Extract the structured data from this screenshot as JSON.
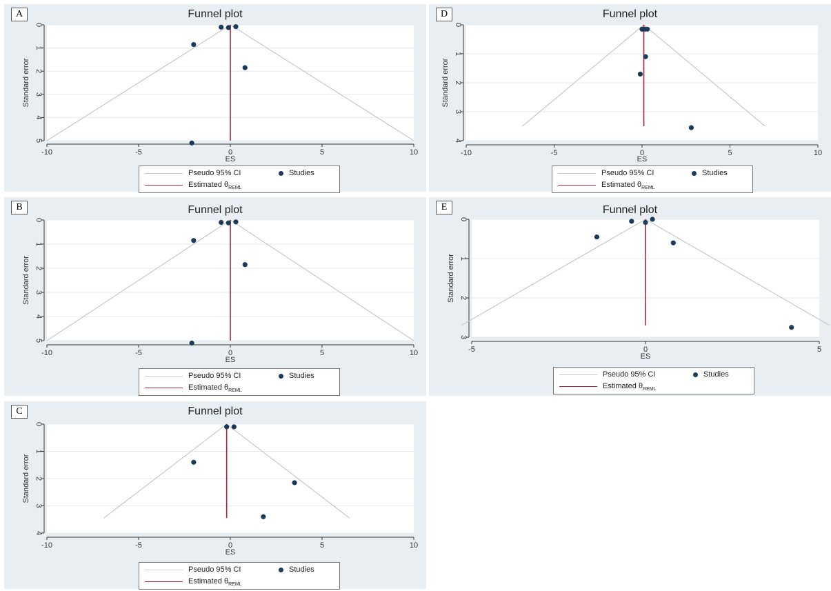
{
  "chart_data": [
    {
      "panel_label": "A",
      "type": "scatter",
      "title": "Funnel plot",
      "xlabel": "ES",
      "ylabel": "Standard error",
      "xlim": [
        -10,
        10
      ],
      "ylim": [
        0,
        5
      ],
      "y_reversed": true,
      "x_ticks": [
        "-10",
        "-5",
        "0",
        "5",
        "10"
      ],
      "y_ticks": [
        "0",
        "1",
        "2",
        "3",
        "4",
        "5"
      ],
      "estimate": 0.0,
      "ci_lines": [
        [
          0,
          0
        ],
        [
          -10,
          5
        ],
        [
          10,
          5
        ]
      ],
      "points": [
        [
          -0.5,
          0.1
        ],
        [
          -0.1,
          0.12
        ],
        [
          0.3,
          0.08
        ],
        [
          -2.0,
          0.85
        ],
        [
          0.8,
          1.85
        ],
        [
          -2.1,
          5.1
        ]
      ],
      "legend": {
        "ci": "Pseudo 95% CI",
        "studies": "Studies",
        "est": "Estimated θ",
        "est_sub": "REML"
      }
    },
    {
      "panel_label": "B",
      "type": "scatter",
      "title": "Funnel plot",
      "xlabel": "ES",
      "ylabel": "Standard error",
      "xlim": [
        -10,
        10
      ],
      "ylim": [
        0,
        5
      ],
      "y_reversed": true,
      "x_ticks": [
        "-10",
        "-5",
        "0",
        "5",
        "10"
      ],
      "y_ticks": [
        "0",
        "1",
        "2",
        "3",
        "4",
        "5"
      ],
      "estimate": 0.0,
      "ci_lines": [
        [
          0,
          0
        ],
        [
          -10,
          5
        ],
        [
          10,
          5
        ]
      ],
      "points": [
        [
          -0.5,
          0.1
        ],
        [
          -0.1,
          0.12
        ],
        [
          0.3,
          0.08
        ],
        [
          -2.0,
          0.85
        ],
        [
          0.8,
          1.85
        ],
        [
          -2.1,
          5.1
        ]
      ],
      "legend": {
        "ci": "Pseudo 95% CI",
        "studies": "Studies",
        "est": "Estimated θ",
        "est_sub": "REML"
      }
    },
    {
      "panel_label": "C",
      "type": "scatter",
      "title": "Funnel plot",
      "xlabel": "ES",
      "ylabel": "Standard error",
      "xlim": [
        -10,
        10
      ],
      "ylim": [
        0,
        4
      ],
      "y_reversed": true,
      "x_ticks": [
        "-10",
        "-5",
        "0",
        "5",
        "10"
      ],
      "y_ticks": [
        "0",
        "1",
        "2",
        "3",
        "4"
      ],
      "estimate": -0.2,
      "ci_lines": [
        [
          -0.2,
          0
        ],
        [
          -6.9,
          3.45
        ],
        [
          6.5,
          3.45
        ]
      ],
      "points": [
        [
          -0.2,
          0.1
        ],
        [
          0.2,
          0.1
        ],
        [
          -2.0,
          1.4
        ],
        [
          3.5,
          2.15
        ],
        [
          1.8,
          3.4
        ]
      ],
      "legend": {
        "ci": "Pseudo 95% CI",
        "studies": "Studies",
        "est": "Estimated θ",
        "est_sub": "REML"
      }
    },
    {
      "panel_label": "D",
      "type": "scatter",
      "title": "Funnel plot",
      "xlabel": "ES",
      "ylabel": "Standard error",
      "xlim": [
        -10,
        10
      ],
      "ylim": [
        0,
        4
      ],
      "y_reversed": true,
      "x_ticks": [
        "-10",
        "-5",
        "0",
        "5",
        "10"
      ],
      "y_ticks": [
        "0",
        "1",
        "2",
        "3",
        "4"
      ],
      "estimate": 0.1,
      "ci_lines": [
        [
          0.1,
          0
        ],
        [
          -6.8,
          3.5
        ],
        [
          7.0,
          3.5
        ]
      ],
      "points": [
        [
          0.0,
          0.15
        ],
        [
          0.15,
          0.15
        ],
        [
          0.3,
          0.15
        ],
        [
          0.2,
          1.1
        ],
        [
          -0.1,
          1.7
        ],
        [
          2.8,
          3.55
        ]
      ],
      "legend": {
        "ci": "Pseudo 95% CI",
        "studies": "Studies",
        "est": "Estimated θ",
        "est_sub": "REML"
      }
    },
    {
      "panel_label": "E",
      "type": "scatter",
      "title": "Funnel plot",
      "xlabel": "ES",
      "ylabel": "Standard error",
      "xlim": [
        -5,
        5
      ],
      "ylim": [
        0,
        3
      ],
      "y_reversed": true,
      "x_ticks": [
        "-5",
        "0",
        "5"
      ],
      "y_ticks": [
        "0",
        "1",
        "2",
        "3"
      ],
      "estimate": 0.0,
      "ci_lines": [
        [
          0,
          0
        ],
        [
          -5.3,
          2.7
        ],
        [
          5.3,
          2.7
        ]
      ],
      "points": [
        [
          -0.4,
          0.05
        ],
        [
          0.2,
          0.0
        ],
        [
          0.0,
          0.08
        ],
        [
          -1.4,
          0.45
        ],
        [
          0.8,
          0.6
        ],
        [
          4.2,
          2.75
        ]
      ],
      "legend": {
        "ci": "Pseudo 95% CI",
        "studies": "Studies",
        "est": "Estimated θ",
        "est_sub": "REML"
      }
    }
  ],
  "colors": {
    "panel_bg": "#e9eef2",
    "plot_bg": "#ffffff",
    "grid": "#e6eaee",
    "ci_line": "#c8c8c8",
    "estimate_line": "#a8243c",
    "points": "#1b3a5c"
  }
}
